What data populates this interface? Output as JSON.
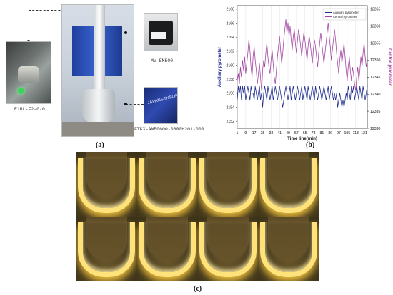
{
  "panel_a": {
    "label": "(a)",
    "captions": {
      "left_camera": "E1RL-F2-0-0",
      "top_right_camera": "MV-EM500",
      "pyrometer": "FTKX-ANE0600-0300H201-000"
    },
    "pyrometer_photo_text": "JAPANSENSOR"
  },
  "panel_b": {
    "label": "(b)"
  },
  "panel_c": {
    "label": "(c)",
    "image_count": 8
  },
  "colors": {
    "auxiliary": "#1f2d8f",
    "central": "#a347a3"
  },
  "chart_data": {
    "type": "line",
    "xlabel": "Time line(min)",
    "x_ticks": [
      1,
      9,
      17,
      25,
      33,
      41,
      49,
      57,
      65,
      73,
      81,
      89,
      97,
      105,
      113,
      121
    ],
    "xlim": [
      1,
      124
    ],
    "y_left": {
      "label": "Auxiliary pyrometer",
      "ticks": [
        2152,
        2154,
        2156,
        2158,
        2160,
        2162,
        2164,
        2166,
        2168
      ],
      "lim": [
        2151,
        2168.5
      ]
    },
    "y_right": {
      "label": "Central pyrometer",
      "ticks": [
        12330,
        12335,
        12340,
        12345,
        12350,
        12355,
        12360,
        12365
      ],
      "lim": [
        12330,
        12366
      ]
    },
    "grid": true,
    "legend": "top-right",
    "series": [
      {
        "name": "Auxiliary pyrometer",
        "axis": "left",
        "values": [
          2155,
          2157,
          2156,
          2157,
          2155,
          2157,
          2156,
          2157,
          2155,
          2156,
          2157,
          2156,
          2155,
          2157,
          2156,
          2156,
          2155,
          2157,
          2156,
          2155,
          2156,
          2157,
          2155,
          2156,
          2154,
          2156,
          2157,
          2156,
          2155,
          2157,
          2156,
          2155,
          2156,
          2157,
          2155,
          2156,
          2157,
          2156,
          2155,
          2156,
          2157,
          2156,
          2155,
          2154,
          2155,
          2156,
          2157,
          2156,
          2155,
          2156,
          2157,
          2155,
          2156,
          2157,
          2156,
          2155,
          2156,
          2157,
          2156,
          2155,
          2156,
          2157,
          2155,
          2156,
          2157,
          2156,
          2155,
          2157,
          2156,
          2155,
          2156,
          2157,
          2156,
          2155,
          2157,
          2156,
          2155,
          2156,
          2157,
          2156,
          2155,
          2156,
          2157,
          2156,
          2155,
          2156,
          2157,
          2155,
          2156,
          2157,
          2156,
          2155,
          2156,
          2155,
          2156,
          2154,
          2155,
          2156,
          2155,
          2154,
          2155,
          2154,
          2155,
          2156,
          2155,
          2157,
          2156,
          2155,
          2157,
          2156,
          2157,
          2155,
          2156,
          2157,
          2156,
          2155,
          2157,
          2156,
          2155,
          2157,
          2156,
          2155,
          2156,
          2157
        ]
      },
      {
        "name": "Central pyrometer",
        "axis": "right",
        "values": [
          12344,
          12346,
          12343,
          12348,
          12345,
          12350,
          12347,
          12351,
          12346,
          12349,
          12352,
          12356,
          12353,
          12348,
          12345,
          12351,
          12354,
          12350,
          12347,
          12343,
          12346,
          12349,
          12345,
          12341,
          12347,
          12350,
          12348,
          12352,
          12355,
          12351,
          12348,
          12346,
          12350,
          12353,
          12349,
          12345,
          12343,
          12347,
          12351,
          12354,
          12357,
          12353,
          12349,
          12352,
          12356,
          12359,
          12362,
          12358,
          12361,
          12357,
          12360,
          12356,
          12353,
          12357,
          12359,
          12355,
          12352,
          12356,
          12359,
          12357,
          12354,
          12351,
          12355,
          12358,
          12356,
          12353,
          12350,
          12354,
          12357,
          12355,
          12352,
          12349,
          12353,
          12356,
          12354,
          12351,
          12348,
          12352,
          12355,
          12358,
          12355,
          12352,
          12349,
          12352,
          12355,
          12358,
          12361,
          12357,
          12354,
          12350,
          12353,
          12356,
          12359,
          12356,
          12352,
          12349,
          12346,
          12350,
          12353,
          12349,
          12352,
          12355,
          12351,
          12347,
          12344,
          12348,
          12351,
          12347,
          12344,
          12348,
          12346,
          12343,
          12341,
          12345,
          12348,
          12344,
          12347,
          12351,
          12348,
          12352,
          12355,
          12351,
          12348,
          12350
        ]
      }
    ]
  }
}
